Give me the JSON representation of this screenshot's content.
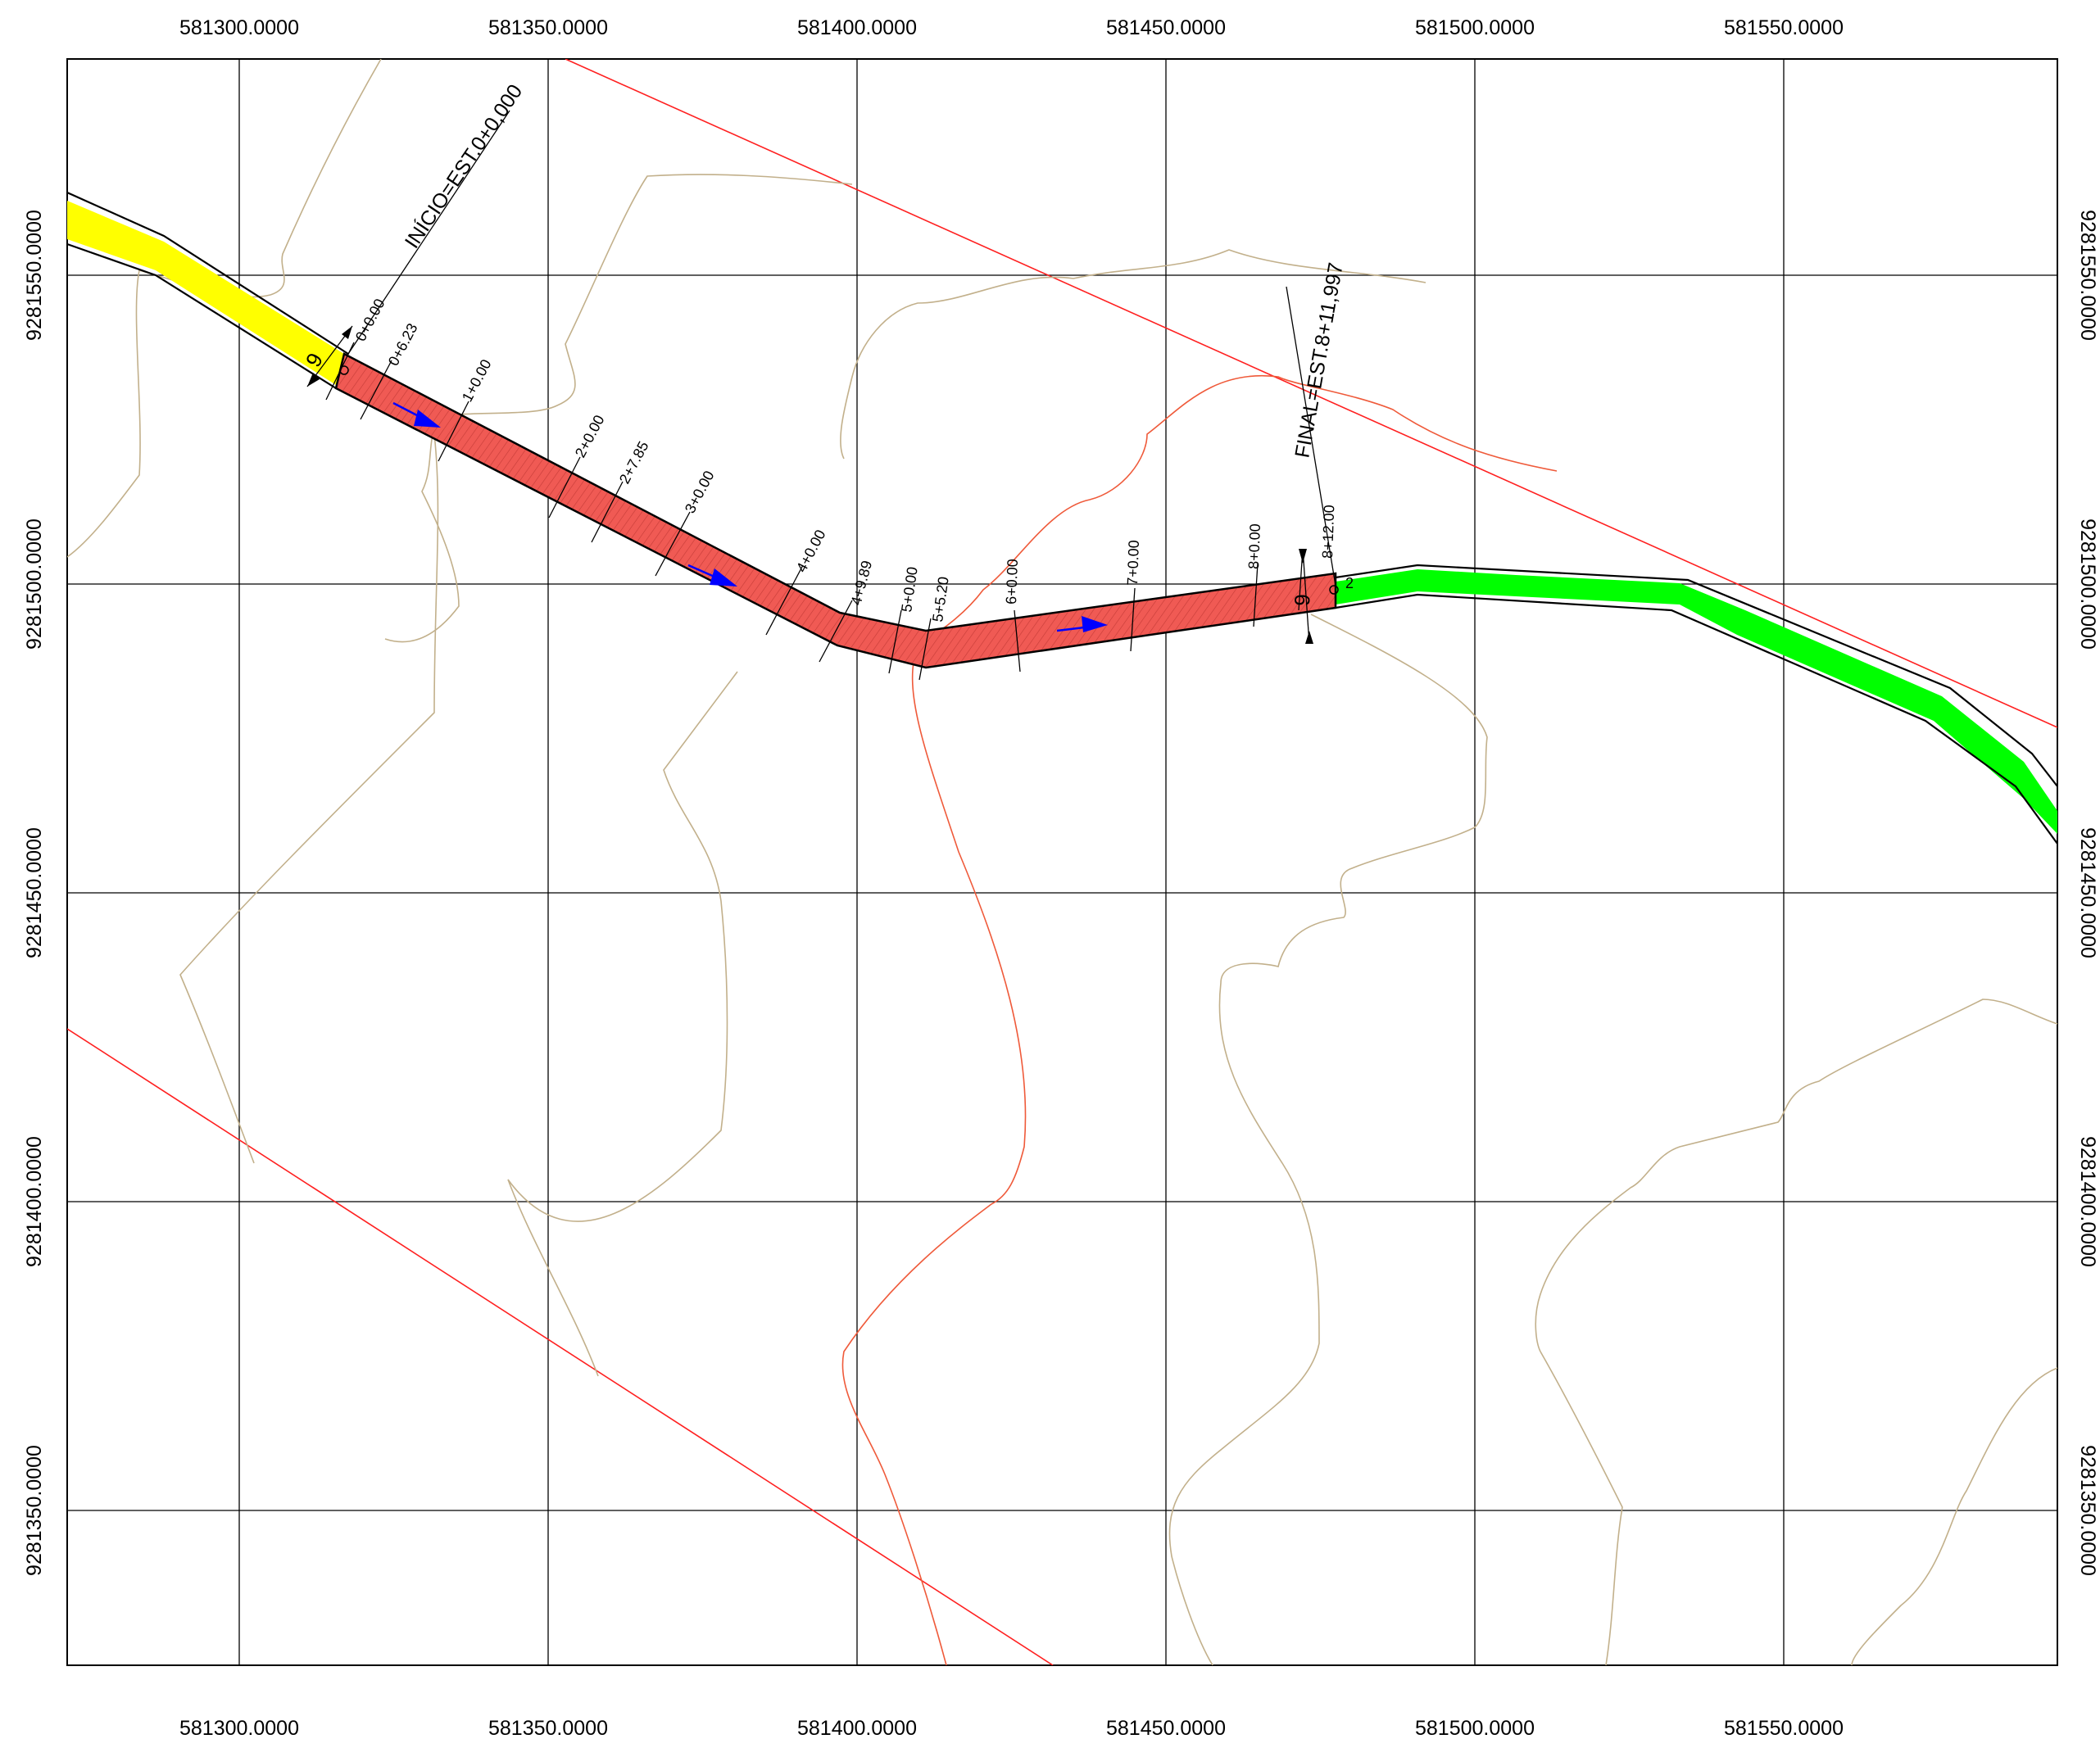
{
  "x_axis_top": [
    "581300.0000",
    "581350.0000",
    "581400.0000",
    "581450.0000",
    "581500.0000",
    "581550.0000"
  ],
  "x_axis_bottom": [
    "581300.0000",
    "581350.0000",
    "581400.0000",
    "581450.0000",
    "581500.0000",
    "581550.0000"
  ],
  "y_axis_left": [
    "9281550.0000",
    "9281500.0000",
    "9281450.0000",
    "9281400.0000",
    "9281350.0000"
  ],
  "y_axis_right": [
    "9281550.0000",
    "9281500.0000",
    "9281450.0000",
    "9281400.0000",
    "9281350.0000"
  ],
  "channel": {
    "start_label": "INÍCIO=EST.0+0,000",
    "end_label": "FINAL=EST.8+11,997",
    "stations": [
      "0+0.00",
      "0+6.23",
      "1+0.00",
      "2+0.00",
      "2+7.85",
      "3+0.00",
      "4+0.00",
      "4+9.89",
      "5+0.00",
      "5+5.20",
      "6+0.00",
      "7+0.00",
      "8+0.00",
      "8+12.00"
    ],
    "segment_start_number": "9",
    "segment_end_number": "9",
    "node_label": "2"
  },
  "colors": {
    "upstream_segment": "#ffff00",
    "current_segment": "#f05a54",
    "downstream_segment": "#00ff00",
    "flow_arrow": "#0000ff",
    "contour_tan": "#c2b08b",
    "contour_red": "#ef5a3a",
    "boundary_line": "#ff2020"
  }
}
